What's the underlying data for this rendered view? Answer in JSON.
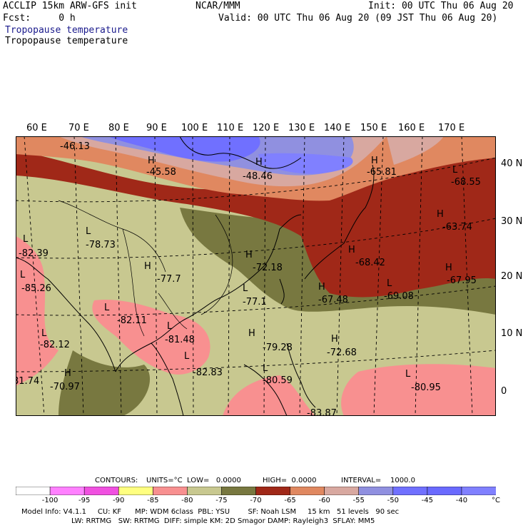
{
  "header": {
    "left1": "ACCLIP 15km ARW-GFS init",
    "center1": "NCAR/MMM",
    "right1": "Init: 00 UTC Thu 06 Aug 20",
    "left2": "Fcst:     0 h",
    "right2": "Valid: 00 UTC Thu 06 Aug 20 (09 JST Thu 06 Aug 20)",
    "field1": "Tropopause temperature",
    "field2": "Tropopause temperature"
  },
  "axes": {
    "lon_labels": [
      "60 E",
      "70 E",
      "80 E",
      "90 E",
      "100 E",
      "110 E",
      "120 E",
      "130 E",
      "140 E",
      "150 E",
      "160 E",
      "170 E"
    ],
    "lat_labels": [
      "40 N",
      "30 N",
      "20 N",
      "10 N",
      "0"
    ]
  },
  "map_labels": [
    {
      "text": "-46.13"
    },
    {
      "text": "H"
    },
    {
      "text": "-45.58"
    },
    {
      "text": "H"
    },
    {
      "text": "-48.46"
    },
    {
      "text": "H"
    },
    {
      "text": "-65.81"
    },
    {
      "text": "L"
    },
    {
      "text": "-68.55"
    },
    {
      "text": "H"
    },
    {
      "text": "-63.74"
    },
    {
      "text": "L"
    },
    {
      "text": "-82.39"
    },
    {
      "text": "L"
    },
    {
      "text": "-78.73"
    },
    {
      "text": "H"
    },
    {
      "text": "-72.18"
    },
    {
      "text": "H"
    },
    {
      "text": "-68.42"
    },
    {
      "text": "L"
    },
    {
      "text": "-85.26"
    },
    {
      "text": "H"
    },
    {
      "text": "-77.7"
    },
    {
      "text": "L"
    },
    {
      "text": "-77.1"
    },
    {
      "text": "H"
    },
    {
      "text": "-67.48"
    },
    {
      "text": "L"
    },
    {
      "text": "-69.08"
    },
    {
      "text": "H"
    },
    {
      "text": "-67.95"
    },
    {
      "text": "L"
    },
    {
      "text": "-82.11"
    },
    {
      "text": "L"
    },
    {
      "text": "-81.48"
    },
    {
      "text": "L"
    },
    {
      "text": "-82.12"
    },
    {
      "text": "H"
    },
    {
      "text": "-79.28"
    },
    {
      "text": "H"
    },
    {
      "text": "-72.68"
    },
    {
      "text": "L"
    },
    {
      "text": "-82.83"
    },
    {
      "text": "H"
    },
    {
      "text": "-70.97"
    },
    {
      "text": "L"
    },
    {
      "text": "-80.59"
    },
    {
      "text": "L"
    },
    {
      "text": "-80.95"
    },
    {
      "text": "81.74"
    },
    {
      "text": "-83.87"
    }
  ],
  "contours_line": {
    "contours": "CONTOURS:",
    "units": "UNITS=°C",
    "low": "LOW=   0.0000",
    "high": "HIGH=  0.0000",
    "interval": "INTERVAL=    1000.0"
  },
  "legend": {
    "colors": [
      "#ffffff",
      "#ff80ff",
      "#f050e0",
      "#ffff80",
      "#f89090",
      "#c8c890",
      "#787840",
      "#a02818",
      "#e08860",
      "#d8a8a0",
      "#9090e0",
      "#7070ff",
      "#6a6aff",
      "#8080ff"
    ],
    "labels": [
      "-100",
      "-95",
      "-90",
      "-85",
      "-80",
      "-75",
      "-70",
      "-65",
      "-60",
      "-55",
      "-50",
      "-45",
      "-40",
      "°C"
    ]
  },
  "footer": {
    "line1": "Model Info: V4.1.1     CU: KF      MP: WDM 6class  PBL: YSU        SF: Noah LSM     15 km   51 levels   90 sec",
    "line2": "LW: RRTMG   SW: RRTMG  DIFF: simple KM: 2D Smagor DAMP: Rayleigh3  SFLAY: MM5"
  },
  "colors": {
    "cold_pink": "#f89090",
    "khaki": "#c8c890",
    "olive": "#787840",
    "dark_red": "#a02818",
    "orange": "#e08860",
    "dusty_pink": "#d8a8a0",
    "lavender": "#9090e0",
    "blue": "#7070ff"
  }
}
